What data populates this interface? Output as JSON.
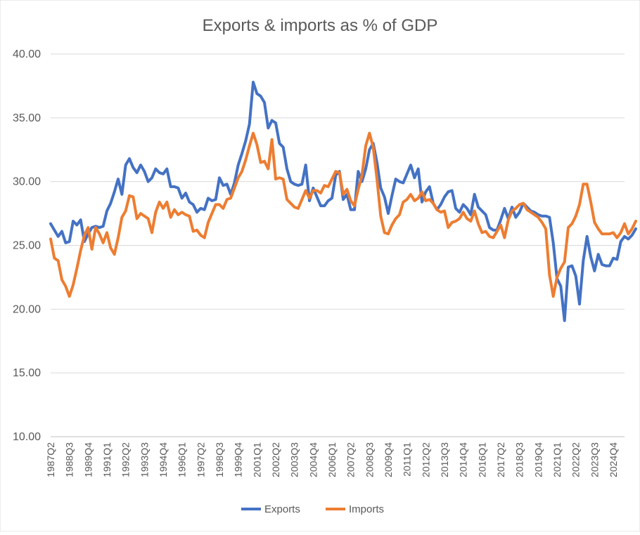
{
  "chart_data": {
    "type": "line",
    "title": "Exports & imports as % of GDP",
    "xlabel": "",
    "ylabel": "",
    "ylim": [
      10,
      40
    ],
    "yticks": [
      "10.00",
      "15.00",
      "20.00",
      "25.00",
      "30.00",
      "35.00",
      "40.00"
    ],
    "x_tick_labels": [
      "1987Q2",
      "1988Q3",
      "1989Q4",
      "1991Q1",
      "1992Q2",
      "1993Q3",
      "1994Q4",
      "1996Q1",
      "1997Q2",
      "1998Q3",
      "1999Q4",
      "2001Q1",
      "2002Q2",
      "2003Q3",
      "2004Q4",
      "2006Q1",
      "2007Q2",
      "2008Q3",
      "2009Q4",
      "2011Q1",
      "2012Q2",
      "2013Q3",
      "2014Q4",
      "2016Q1",
      "2017Q2",
      "2018Q3",
      "2019Q4",
      "2021Q1",
      "2022Q2",
      "2023Q3",
      "2024Q4"
    ],
    "x_start": "1987Q2",
    "x_end": "2025Q3",
    "legend_position": "bottom",
    "series": [
      {
        "name": "Exports",
        "color": "#4472C4",
        "values": [
          26.7,
          26.2,
          25.7,
          26.1,
          25.2,
          25.3,
          26.9,
          26.6,
          27.0,
          25.3,
          25.9,
          26.4,
          26.5,
          26.4,
          26.5,
          27.7,
          28.3,
          29.2,
          30.2,
          29.0,
          31.3,
          31.8,
          31.1,
          30.7,
          31.3,
          30.8,
          30.0,
          30.3,
          31.0,
          30.7,
          30.6,
          31.0,
          29.6,
          29.6,
          29.5,
          28.7,
          29.1,
          28.4,
          28.2,
          27.6,
          27.9,
          27.8,
          28.7,
          28.5,
          28.6,
          30.3,
          29.7,
          29.8,
          29.0,
          29.9,
          31.3,
          32.2,
          33.2,
          34.5,
          37.8,
          36.9,
          36.7,
          36.2,
          34.2,
          34.8,
          34.6,
          33.0,
          32.7,
          31.0,
          30.0,
          29.8,
          29.7,
          29.8,
          31.3,
          28.5,
          29.5,
          28.8,
          28.1,
          28.1,
          28.5,
          28.7,
          30.5,
          30.8,
          28.6,
          29.0,
          27.8,
          27.8,
          30.8,
          30.0,
          31.0,
          32.5,
          33.0,
          31.5,
          29.5,
          28.8,
          27.5,
          28.9,
          30.2,
          30.0,
          29.9,
          30.6,
          31.3,
          30.3,
          31.0,
          28.4,
          29.2,
          29.6,
          28.3,
          27.8,
          28.2,
          28.8,
          29.2,
          29.3,
          27.9,
          27.6,
          28.2,
          27.9,
          27.4,
          29.0,
          28.0,
          27.7,
          27.4,
          26.4,
          26.2,
          26.2,
          27.0,
          27.9,
          27.1,
          28.0,
          27.2,
          27.6,
          28.3,
          28.0,
          27.7,
          27.6,
          27.4,
          27.3,
          27.3,
          27.2,
          25.2,
          22.4,
          21.8,
          19.1,
          23.3,
          23.4,
          22.6,
          20.4,
          23.8,
          25.7,
          24.1,
          23.0,
          24.3,
          23.5,
          23.4,
          23.4,
          24.0,
          23.9,
          25.3,
          25.7,
          25.5,
          25.8,
          26.3
        ]
      },
      {
        "name": "Imports",
        "color": "#ED7D31",
        "values": [
          25.5,
          24.0,
          23.8,
          22.3,
          21.8,
          21.0,
          21.9,
          23.2,
          24.6,
          25.8,
          26.4,
          24.7,
          26.4,
          25.9,
          25.2,
          26.0,
          24.8,
          24.3,
          25.6,
          27.2,
          27.7,
          28.9,
          28.8,
          27.1,
          27.5,
          27.3,
          27.1,
          26.0,
          27.6,
          28.4,
          27.9,
          28.4,
          27.2,
          27.8,
          27.4,
          27.6,
          27.4,
          27.3,
          26.1,
          26.2,
          25.8,
          25.6,
          26.8,
          27.5,
          28.2,
          28.2,
          27.9,
          28.6,
          28.7,
          29.5,
          30.3,
          30.8,
          31.7,
          32.8,
          33.8,
          32.9,
          31.5,
          31.6,
          31.0,
          33.3,
          30.2,
          30.3,
          30.2,
          28.6,
          28.3,
          28.0,
          27.9,
          28.6,
          29.3,
          28.7,
          29.3,
          29.3,
          29.1,
          29.7,
          29.6,
          30.2,
          30.8,
          30.7,
          29.0,
          29.4,
          28.5,
          28.1,
          29.4,
          30.5,
          32.8,
          33.8,
          32.7,
          30.2,
          27.3,
          26.0,
          25.9,
          26.6,
          27.1,
          27.4,
          28.4,
          28.6,
          29.0,
          28.5,
          28.7,
          29.2,
          28.5,
          28.6,
          28.3,
          27.8,
          27.6,
          27.7,
          26.4,
          26.8,
          26.9,
          27.1,
          27.6,
          27.1,
          26.9,
          27.7,
          26.7,
          26.0,
          26.1,
          25.7,
          25.6,
          26.1,
          26.6,
          25.6,
          27.0,
          27.7,
          27.9,
          28.2,
          28.3,
          27.8,
          27.6,
          27.4,
          27.2,
          26.8,
          26.3,
          22.7,
          21.0,
          22.5,
          23.2,
          23.7,
          26.4,
          26.7,
          27.3,
          28.2,
          29.8,
          29.8,
          28.4,
          26.8,
          26.3,
          25.9,
          25.9,
          25.9,
          26.0,
          25.6,
          26.0,
          26.7,
          25.9,
          26.3,
          26.9
        ]
      }
    ]
  }
}
